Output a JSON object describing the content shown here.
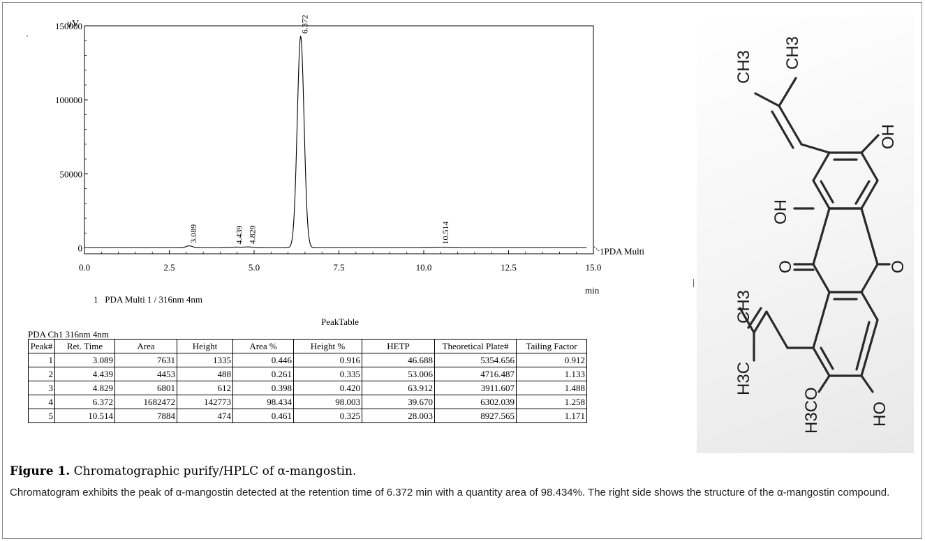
{
  "chart_data": {
    "type": "line",
    "y_unit": "uV",
    "x_unit": "min",
    "xlim": [
      0,
      15
    ],
    "ylim": [
      -4000,
      150000
    ],
    "x_ticks": [
      "0.0",
      "2.5",
      "5.0",
      "7.5",
      "10.0",
      "12.5",
      "15.0"
    ],
    "y_ticks": [
      "0",
      "50000",
      "100000",
      "150000"
    ],
    "trace_label": "1PDA Multi",
    "legend": "1   PDA Multi 1 / 316nm 4nm",
    "peaks": [
      {
        "rt": 3.089,
        "label": "3.089",
        "height": 1335,
        "width": 0.1
      },
      {
        "rt": 4.439,
        "label": "4.439",
        "height": 488,
        "width": 0.15
      },
      {
        "rt": 4.829,
        "label": "4.829",
        "height": 612,
        "width": 0.15
      },
      {
        "rt": 6.372,
        "label": "6.372",
        "height": 142773,
        "width": 0.1
      },
      {
        "rt": 10.514,
        "label": "10.514",
        "height": 474,
        "width": 0.2
      }
    ]
  },
  "peak_table": {
    "title": "PeakTable",
    "channel": "PDA Ch1 316nm 4nm",
    "headers": [
      "Peak#",
      "Ret. Time",
      "Area",
      "Height",
      "Area %",
      "Height %",
      "HETP",
      "Theoretical Plate#",
      "Tailing Factor"
    ],
    "rows": [
      [
        "1",
        "3.089",
        "7631",
        "1335",
        "0.446",
        "0.916",
        "46.688",
        "5354.656",
        "0.912"
      ],
      [
        "2",
        "4.439",
        "4453",
        "488",
        "0.261",
        "0.335",
        "53.006",
        "4716.487",
        "1.133"
      ],
      [
        "3",
        "4.829",
        "6801",
        "612",
        "0.398",
        "0.420",
        "63.912",
        "3911.607",
        "1.488"
      ],
      [
        "4",
        "6.372",
        "1682472",
        "142773",
        "98.434",
        "98.003",
        "39.670",
        "6302.039",
        "1.258"
      ],
      [
        "5",
        "10.514",
        "7884",
        "474",
        "0.461",
        "0.325",
        "28.003",
        "8927.565",
        "1.171"
      ]
    ]
  },
  "structure": {
    "atoms": {
      "ch3_a": "CH3",
      "ch3_b": "CH3",
      "oh_top": "OH",
      "oh_mid": "OH",
      "o_carbonyl": "O",
      "o_ring": "O",
      "ch3_c": "CH3",
      "h3c": "H3C",
      "h3co": "H3CO",
      "ho": "HO"
    }
  },
  "caption": {
    "label": "Figure 1.",
    "title": "Chromatographic purify/HPLC of α-mangostin.",
    "description": "Chromatogram exhibits the peak of α-mangostin detected at the retention time of 6.372 min with a quantity area of 98.434%. The right side shows the structure of the α-mangostin compound."
  }
}
